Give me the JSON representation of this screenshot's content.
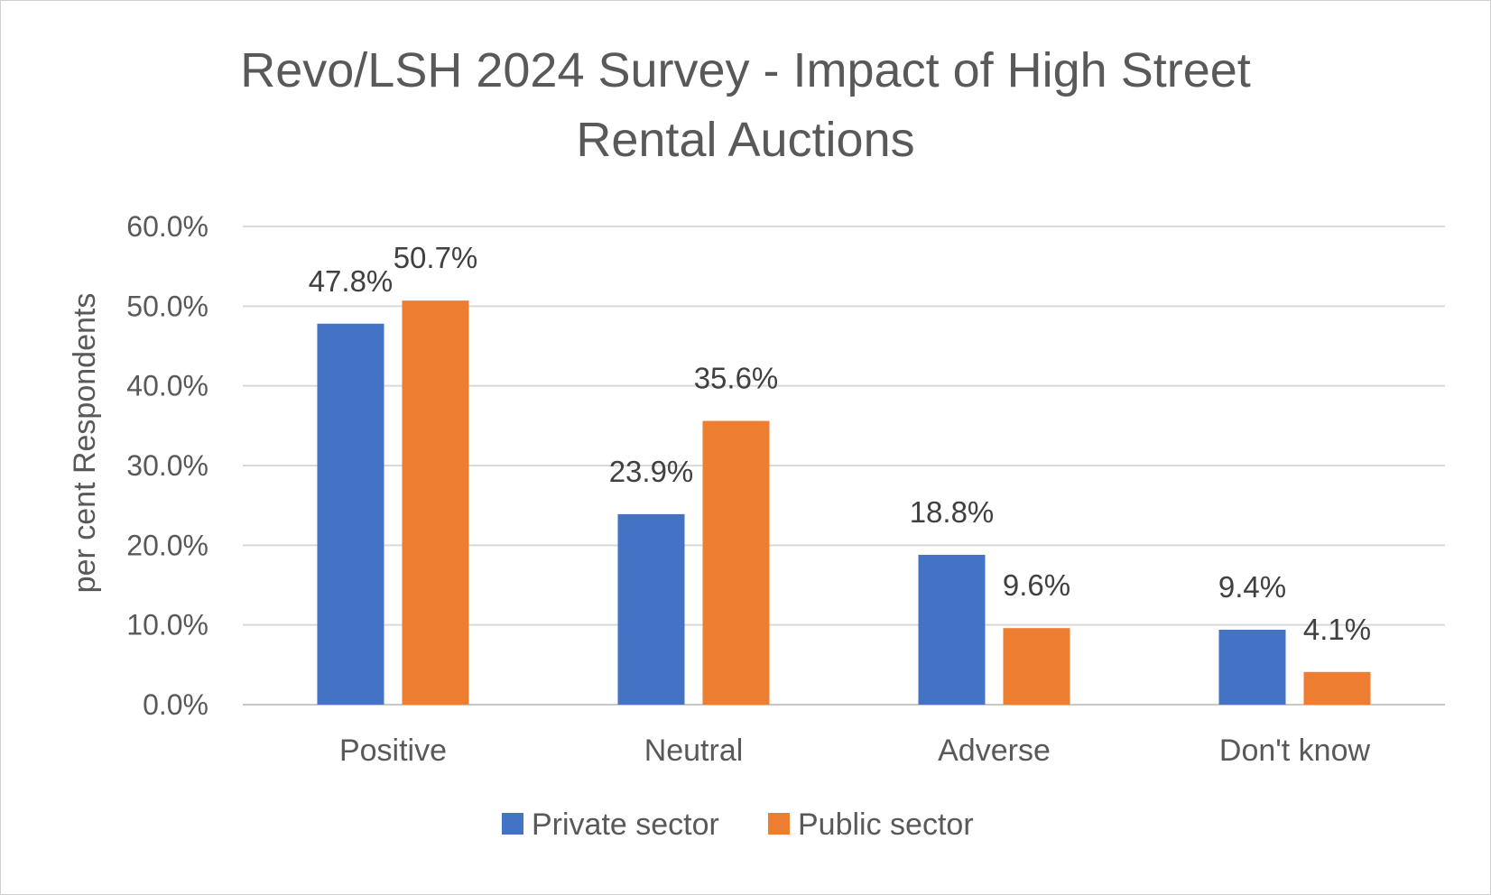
{
  "chart_data": {
    "type": "bar",
    "title_lines": [
      "Revo/LSH 2024 Survey - Impact of High Street",
      "Rental Auctions"
    ],
    "ylabel": "per cent Respondents",
    "xlabel": "",
    "categories": [
      "Positive",
      "Neutral",
      "Adverse",
      "Don't know"
    ],
    "series": [
      {
        "name": "Private sector",
        "color": "#4472C4",
        "values": [
          47.8,
          23.9,
          18.8,
          9.4
        ],
        "labels": [
          "47.8%",
          "23.9%",
          "18.8%",
          "9.4%"
        ]
      },
      {
        "name": "Public sector",
        "color": "#ED7D31",
        "values": [
          50.7,
          35.6,
          9.6,
          4.1
        ],
        "labels": [
          "50.7%",
          "35.6%",
          "9.6%",
          "4.1%"
        ]
      }
    ],
    "ylim": [
      0,
      60
    ],
    "yticks": [
      0,
      10,
      20,
      30,
      40,
      50,
      60
    ],
    "ytick_labels": [
      "0.0%",
      "10.0%",
      "20.0%",
      "30.0%",
      "40.0%",
      "50.0%",
      "60.0%"
    ],
    "grid": true,
    "legend_position": "bottom"
  }
}
